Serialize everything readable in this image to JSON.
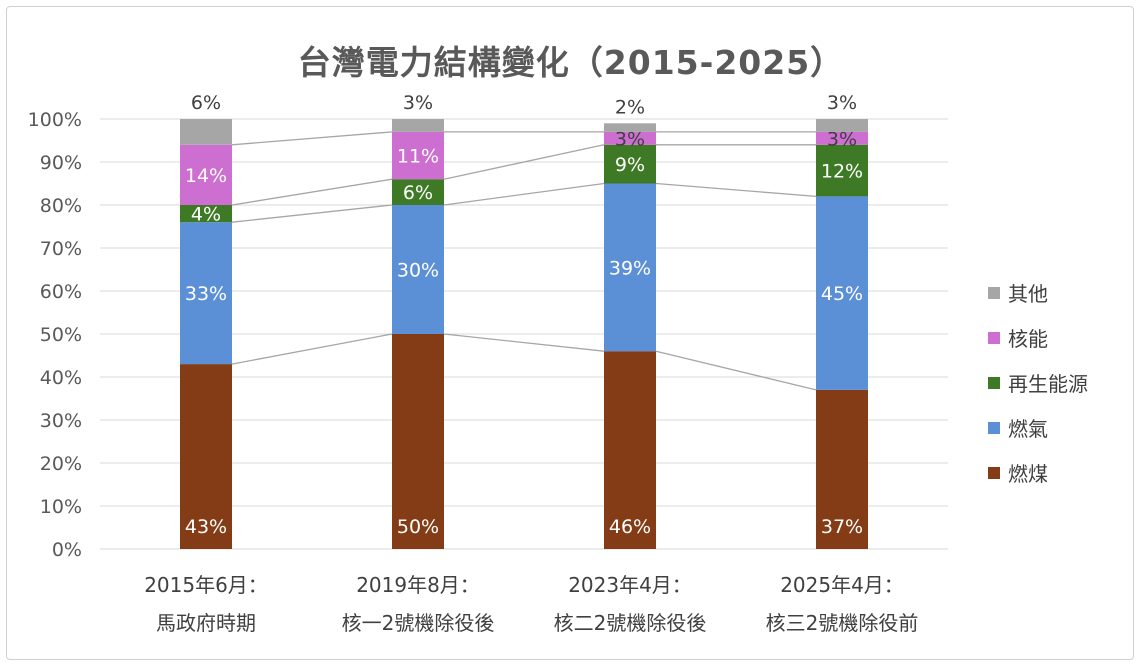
{
  "chart_data": {
    "type": "bar",
    "stacked": true,
    "title": "台灣電力結構變化（2015-2025）",
    "categories": [
      {
        "line1": "2015年6月：",
        "line2": "馬政府時期"
      },
      {
        "line1": "2019年8月：",
        "line2": "核一2號機除役後"
      },
      {
        "line1": "2023年4月：",
        "line2": "核二2號機除役後"
      },
      {
        "line1": "2025年4月：",
        "line2": "核三2號機除役前"
      }
    ],
    "series": [
      {
        "name": "燃煤",
        "color": "#843C16",
        "values": [
          43,
          50,
          46,
          37
        ],
        "labels": [
          "43%",
          "50%",
          "46%",
          "37%"
        ]
      },
      {
        "name": "燃氣",
        "color": "#5B8FD6",
        "values": [
          33,
          30,
          39,
          45
        ],
        "labels": [
          "33%",
          "30%",
          "39%",
          "45%"
        ]
      },
      {
        "name": "再生能源",
        "color": "#3E7A26",
        "values": [
          4,
          6,
          9,
          12
        ],
        "labels": [
          "4%",
          "6%",
          "9%",
          "12%"
        ]
      },
      {
        "name": "核能",
        "color": "#CC6FD0",
        "values": [
          14,
          11,
          3,
          3
        ],
        "labels": [
          "14%",
          "11%",
          "3%",
          "3%"
        ]
      },
      {
        "name": "其他",
        "color": "#A6A6A6",
        "values": [
          6,
          3,
          2,
          3
        ],
        "labels": [
          "6%",
          "3%",
          "2%",
          "3%"
        ]
      }
    ],
    "legend_order": [
      "其他",
      "核能",
      "再生能源",
      "燃氣",
      "燃煤"
    ],
    "ylim": [
      0,
      100
    ],
    "yticks": [
      "0%",
      "10%",
      "20%",
      "30%",
      "40%",
      "50%",
      "60%",
      "70%",
      "80%",
      "90%",
      "100%"
    ],
    "legend_position": "right",
    "series_lines": true
  }
}
